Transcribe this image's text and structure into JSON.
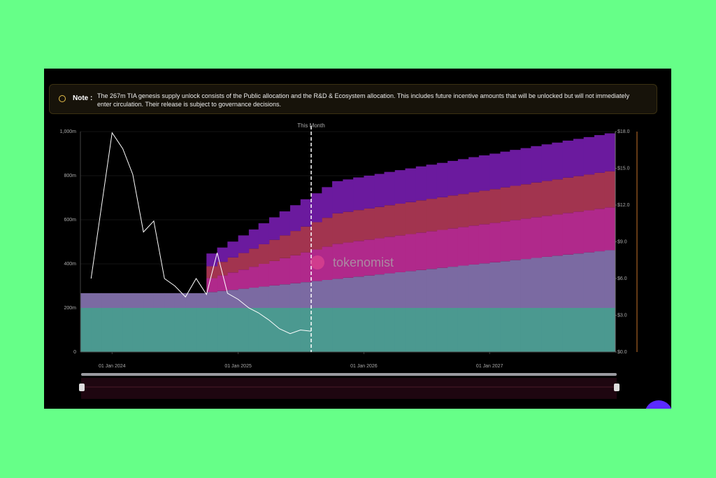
{
  "note": {
    "label": "Note :",
    "text": "The 267m TIA genesis supply unlock consists of the Public allocation and the R&D & Ecosystem allocation. This includes future incentive amounts that will be unlocked but will not immediately enter circulation. Their release is subject to governance decisions."
  },
  "chart_data": {
    "type": "area",
    "stacked": true,
    "grid": true,
    "watermark": "tokenomist",
    "x": [
      "2023-10-01",
      "2023-11-01",
      "2023-12-01",
      "2024-01-01",
      "2024-02-01",
      "2024-03-01",
      "2024-04-01",
      "2024-05-01",
      "2024-06-01",
      "2024-07-01",
      "2024-08-01",
      "2024-09-01",
      "2024-10-01",
      "2024-11-01",
      "2024-12-01",
      "2025-01-01",
      "2025-02-01",
      "2025-03-01",
      "2025-04-01",
      "2025-05-01",
      "2025-06-01",
      "2025-07-01",
      "2025-08-01",
      "2025-09-01",
      "2025-10-01",
      "2025-11-01",
      "2025-12-01",
      "2026-01-01",
      "2026-02-01",
      "2026-03-01",
      "2026-04-01",
      "2026-05-01",
      "2026-06-01",
      "2026-07-01",
      "2026-08-01",
      "2026-09-01",
      "2026-10-01",
      "2026-11-01",
      "2026-12-01",
      "2027-01-01",
      "2027-02-01",
      "2027-03-01",
      "2027-04-01",
      "2027-05-01",
      "2027-06-01",
      "2027-07-01",
      "2027-08-01",
      "2027-09-01",
      "2027-10-01",
      "2027-11-01",
      "2027-12-01"
    ],
    "xlim": [
      "2023-10-01",
      "2028-01-01"
    ],
    "xticks": [
      {
        "value": "2024-01-01",
        "label": "01 Jan 2024"
      },
      {
        "value": "2025-01-01",
        "label": "01 Jan 2025"
      },
      {
        "value": "2026-01-01",
        "label": "01 Jan 2026"
      },
      {
        "value": "2027-01-01",
        "label": "01 Jan 2027"
      }
    ],
    "ylim": [
      0,
      1000
    ],
    "yticks": [
      0,
      {
        "value": 200,
        "label": "200m"
      },
      {
        "value": 400,
        "label": "400m"
      },
      {
        "value": 600,
        "label": "600m"
      },
      {
        "value": 800,
        "label": "800m"
      },
      {
        "value": 1000,
        "label": "1,000m"
      }
    ],
    "y2lim": [
      0,
      18
    ],
    "y2ticks": [
      {
        "value": 0,
        "label": "$0.0"
      },
      {
        "value": 3,
        "label": "$3.0"
      },
      {
        "value": 6,
        "label": "$6.0"
      },
      {
        "value": 9,
        "label": "$9.0"
      },
      {
        "value": 12,
        "label": "$12.0"
      },
      {
        "value": 15,
        "label": "$15.0"
      },
      {
        "value": 18,
        "label": "$18.0"
      }
    ],
    "annotation": {
      "text": "This Month",
      "x": "2025-08-01"
    },
    "series": [
      {
        "color": "#4b9990",
        "values": [
          200,
          200,
          200,
          200,
          200,
          200,
          200,
          200,
          200,
          200,
          200,
          200,
          200,
          200,
          200,
          200,
          200,
          200,
          200,
          200,
          200,
          200,
          200,
          200,
          200,
          200,
          200,
          200,
          200,
          200,
          200,
          200,
          200,
          200,
          200,
          200,
          200,
          200,
          200,
          200,
          200,
          200,
          200,
          200,
          200,
          200,
          200,
          200,
          200,
          200,
          200
        ]
      },
      {
        "color": "#7b6aa2",
        "values": [
          67,
          67,
          67,
          67,
          67,
          67,
          67,
          67,
          67,
          67,
          67,
          67,
          72,
          77,
          82,
          87,
          92,
          97,
          102,
          107,
          112,
          117,
          122,
          127,
          132,
          137,
          142,
          147,
          152,
          157,
          162,
          167,
          172,
          177,
          182,
          187,
          192,
          197,
          202,
          207,
          212,
          217,
          222,
          227,
          232,
          237,
          242,
          247,
          252,
          257,
          262
        ]
      },
      {
        "color": "#b0298b",
        "values": [
          0,
          0,
          0,
          0,
          0,
          0,
          0,
          0,
          0,
          0,
          0,
          0,
          63,
          71,
          79,
          87,
          95,
          103,
          111,
          119,
          127,
          135,
          143,
          151,
          159,
          160,
          162,
          163,
          164,
          166,
          167,
          168,
          170,
          171,
          172,
          174,
          175,
          177,
          178,
          179,
          181,
          182,
          183,
          185,
          186,
          187,
          189,
          190,
          191,
          193,
          194
        ]
      },
      {
        "color": "#a2344f",
        "values": [
          0,
          0,
          0,
          0,
          0,
          0,
          0,
          0,
          0,
          0,
          0,
          0,
          54,
          61,
          68,
          75,
          82,
          89,
          96,
          103,
          110,
          117,
          124,
          131,
          138,
          139,
          140,
          141,
          142,
          143,
          144,
          145,
          146,
          147,
          148,
          149,
          150,
          151,
          152,
          153,
          154,
          155,
          156,
          157,
          158,
          159,
          160,
          161,
          162,
          163,
          164
        ]
      },
      {
        "color": "#6b1a9e",
        "values": [
          0,
          0,
          0,
          0,
          0,
          0,
          0,
          0,
          0,
          0,
          0,
          0,
          58,
          65,
          72,
          80,
          87,
          95,
          102,
          109,
          117,
          124,
          131,
          139,
          146,
          147,
          148,
          149,
          150,
          151,
          152,
          153,
          154,
          155,
          156,
          157,
          158,
          159,
          160,
          161,
          162,
          163,
          164,
          165,
          166,
          167,
          168,
          169,
          170,
          171,
          172
        ]
      },
      {
        "type": "line",
        "axis": "y2",
        "color": "#ffffff",
        "x": [
          "2023-11-01",
          "2024-01-01",
          "2024-02-01",
          "2024-03-01",
          "2024-04-01",
          "2024-05-01",
          "2024-06-01",
          "2024-07-01",
          "2024-08-01",
          "2024-09-01",
          "2024-10-01",
          "2024-11-01",
          "2024-12-01",
          "2025-01-01",
          "2025-02-01",
          "2025-03-01",
          "2025-04-01",
          "2025-05-01",
          "2025-06-01",
          "2025-07-01",
          "2025-08-01"
        ],
        "values": [
          6.0,
          17.9,
          16.6,
          14.5,
          9.8,
          10.7,
          6.0,
          5.4,
          4.5,
          6.0,
          4.7,
          8.1,
          4.8,
          4.3,
          3.6,
          3.2,
          2.6,
          1.9,
          1.5,
          1.8,
          1.7
        ]
      }
    ]
  }
}
